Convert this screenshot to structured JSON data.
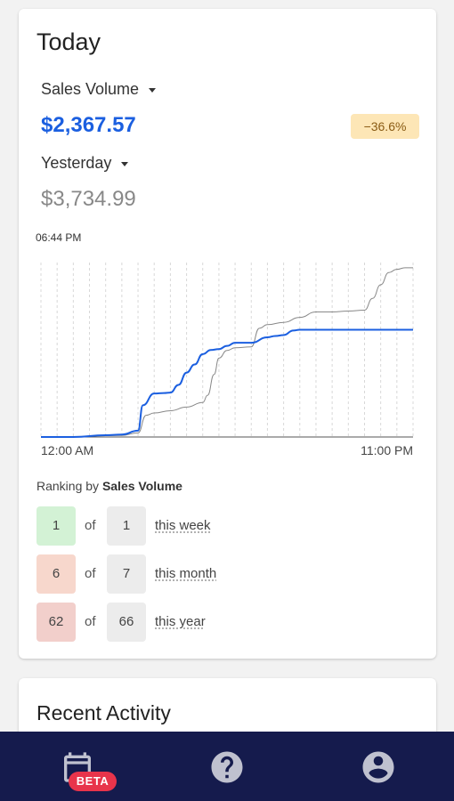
{
  "today_card": {
    "title": "Today",
    "metric_dropdown": "Sales Volume",
    "current_value": "$2,367.57",
    "change_badge": "−36.6%",
    "compare_dropdown": "Yesterday",
    "compare_value": "$3,734.99"
  },
  "chart_data": {
    "type": "line",
    "time_label": "06:44 PM",
    "x_start_label": "12:00 AM",
    "x_end_label": "11:00 PM",
    "x_unit": "hour",
    "x_range": [
      0,
      23
    ],
    "y_range": [
      0,
      3850
    ],
    "gridlines": "vertical dashed",
    "series": [
      {
        "color": "#1b5fe0",
        "points": [
          [
            0,
            0
          ],
          [
            2,
            0
          ],
          [
            4,
            40
          ],
          [
            5,
            55
          ],
          [
            6,
            140
          ],
          [
            6.3,
            700
          ],
          [
            7,
            960
          ],
          [
            7.6,
            970
          ],
          [
            8,
            980
          ],
          [
            8.5,
            1150
          ],
          [
            9,
            1420
          ],
          [
            9.5,
            1600
          ],
          [
            10,
            1830
          ],
          [
            10.5,
            1920
          ],
          [
            11,
            1940
          ],
          [
            11.5,
            2010
          ],
          [
            12,
            2080
          ],
          [
            13,
            2080
          ],
          [
            14,
            2200
          ],
          [
            14.5,
            2230
          ],
          [
            15,
            2250
          ],
          [
            15.6,
            2350
          ],
          [
            16,
            2367
          ],
          [
            18.7,
            2367
          ],
          [
            23,
            2367
          ]
        ]
      },
      {
        "color": "#888888",
        "points": [
          [
            0,
            0
          ],
          [
            2,
            10
          ],
          [
            4,
            30
          ],
          [
            5,
            35
          ],
          [
            6,
            90
          ],
          [
            6.5,
            480
          ],
          [
            7,
            530
          ],
          [
            8,
            580
          ],
          [
            9,
            660
          ],
          [
            10,
            760
          ],
          [
            10.3,
            920
          ],
          [
            10.7,
            1380
          ],
          [
            11,
            1740
          ],
          [
            11.5,
            1910
          ],
          [
            12,
            1970
          ],
          [
            13,
            1990
          ],
          [
            13.5,
            2400
          ],
          [
            14,
            2480
          ],
          [
            15,
            2530
          ],
          [
            16,
            2640
          ],
          [
            17,
            2760
          ],
          [
            18,
            2760
          ],
          [
            19,
            2780
          ],
          [
            20,
            2800
          ],
          [
            20.5,
            3060
          ],
          [
            21,
            3360
          ],
          [
            21.5,
            3630
          ],
          [
            22,
            3700
          ],
          [
            22.5,
            3735
          ],
          [
            23,
            3735
          ]
        ]
      }
    ]
  },
  "ranking": {
    "heading_prefix": "Ranking by ",
    "heading_metric": "Sales Volume",
    "of_word": "of",
    "rows": [
      {
        "rank": "1",
        "total": "1",
        "period": "this week",
        "rank_color": "#d3f2d5"
      },
      {
        "rank": "6",
        "total": "7",
        "period": "this month",
        "rank_color": "#f7d7cc"
      },
      {
        "rank": "62",
        "total": "66",
        "period": "this year",
        "rank_color": "#f2cfcb"
      }
    ]
  },
  "recent_card": {
    "title": "Recent Activity"
  },
  "bottom_nav": {
    "items": [
      {
        "icon": "calendar-icon",
        "badge": "BETA"
      },
      {
        "icon": "help-icon"
      },
      {
        "icon": "account-icon"
      }
    ],
    "background": "#151b4d",
    "badge_color": "#e8344b"
  },
  "colors": {
    "accent_blue": "#1b5fe0",
    "compare_gray": "#888888",
    "badge_bg": "#fde6b6",
    "badge_text": "#8a5b14"
  }
}
